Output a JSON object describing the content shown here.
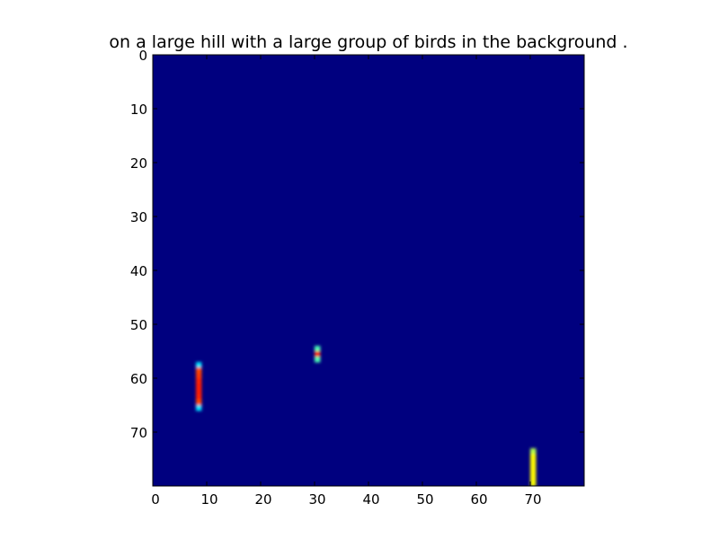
{
  "chart_data": {
    "type": "heatmap",
    "title": "on a large hill with a large group of birds in the background .",
    "xlabel": "",
    "ylabel": "",
    "grid": false,
    "colormap": "jet",
    "background_value": 0.0,
    "xlim": [
      0,
      80
    ],
    "ylim": [
      80,
      0
    ],
    "x_ticks": [
      0,
      10,
      20,
      30,
      40,
      50,
      60,
      70
    ],
    "y_ticks": [
      0,
      10,
      20,
      30,
      40,
      50,
      60,
      70
    ],
    "x_tick_labels": [
      "0",
      "10",
      "20",
      "30",
      "40",
      "50",
      "60",
      "70"
    ],
    "y_tick_labels": [
      "0",
      "10",
      "20",
      "30",
      "40",
      "50",
      "60",
      "70"
    ],
    "blobs": [
      {
        "cells": [
          {
            "x": 8,
            "y": 57,
            "value": 0.35
          },
          {
            "x": 8,
            "y": 58,
            "value": 0.8
          },
          {
            "x": 8,
            "y": 59,
            "value": 0.82
          },
          {
            "x": 8,
            "y": 60,
            "value": 0.84
          },
          {
            "x": 8,
            "y": 61,
            "value": 0.85
          },
          {
            "x": 8,
            "y": 62,
            "value": 0.85
          },
          {
            "x": 8,
            "y": 63,
            "value": 0.84
          },
          {
            "x": 8,
            "y": 64,
            "value": 0.8
          },
          {
            "x": 8,
            "y": 65,
            "value": 0.35
          }
        ]
      },
      {
        "cells": [
          {
            "x": 30,
            "y": 54,
            "value": 0.45
          },
          {
            "x": 30,
            "y": 55,
            "value": 0.88
          },
          {
            "x": 30,
            "y": 56,
            "value": 0.45
          }
        ]
      },
      {
        "cells": [
          {
            "x": 70,
            "y": 73,
            "value": 0.55
          },
          {
            "x": 70,
            "y": 74,
            "value": 0.62
          },
          {
            "x": 70,
            "y": 75,
            "value": 0.63
          },
          {
            "x": 70,
            "y": 76,
            "value": 0.63
          },
          {
            "x": 70,
            "y": 77,
            "value": 0.63
          },
          {
            "x": 70,
            "y": 78,
            "value": 0.63
          },
          {
            "x": 70,
            "y": 79,
            "value": 0.62
          }
        ]
      }
    ]
  }
}
